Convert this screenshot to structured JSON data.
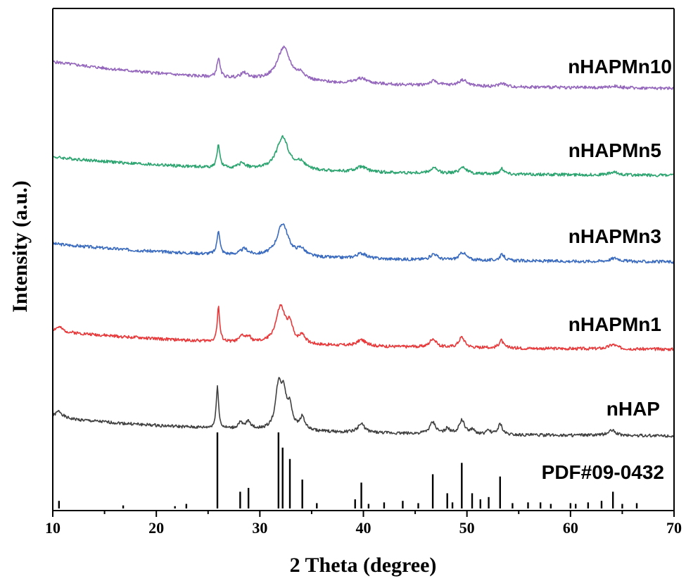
{
  "chart_data": {
    "type": "line",
    "title": "",
    "xlabel": "2 Theta (degree)",
    "ylabel": "Intensity (a.u.)",
    "xlim": [
      10,
      70
    ],
    "x_ticks": [
      "10",
      "20",
      "30",
      "40",
      "50",
      "60",
      "70"
    ],
    "y_ticks_shown": false,
    "grid": false,
    "legend": "none; series names printed at right end of each trace",
    "y_scale": "arbitrary units, traces vertically offset",
    "peaks": [
      {
        "x": 10.6,
        "h": 0.1,
        "w": 0.45
      },
      {
        "x": 16.8,
        "h": 0.04,
        "w": 0.4
      },
      {
        "x": 21.8,
        "h": 0.03,
        "w": 0.35
      },
      {
        "x": 22.9,
        "h": 0.06,
        "w": 0.3
      },
      {
        "x": 25.9,
        "h": 1.0,
        "w": 0.13
      },
      {
        "x": 28.1,
        "h": 0.22,
        "w": 0.2
      },
      {
        "x": 28.9,
        "h": 0.27,
        "w": 0.22
      },
      {
        "x": 31.8,
        "h": 1.0,
        "w": 0.22
      },
      {
        "x": 32.2,
        "h": 0.8,
        "w": 0.22
      },
      {
        "x": 32.9,
        "h": 0.65,
        "w": 0.25
      },
      {
        "x": 34.1,
        "h": 0.38,
        "w": 0.22
      },
      {
        "x": 35.5,
        "h": 0.07,
        "w": 0.25
      },
      {
        "x": 39.2,
        "h": 0.12,
        "w": 0.3
      },
      {
        "x": 39.8,
        "h": 0.34,
        "w": 0.3
      },
      {
        "x": 40.5,
        "h": 0.06,
        "w": 0.25
      },
      {
        "x": 42.0,
        "h": 0.08,
        "w": 0.25
      },
      {
        "x": 43.8,
        "h": 0.1,
        "w": 0.25
      },
      {
        "x": 45.3,
        "h": 0.07,
        "w": 0.25
      },
      {
        "x": 46.7,
        "h": 0.45,
        "w": 0.3
      },
      {
        "x": 48.1,
        "h": 0.2,
        "w": 0.25
      },
      {
        "x": 48.6,
        "h": 0.08,
        "w": 0.25
      },
      {
        "x": 49.5,
        "h": 0.6,
        "w": 0.28
      },
      {
        "x": 50.5,
        "h": 0.2,
        "w": 0.25
      },
      {
        "x": 51.3,
        "h": 0.12,
        "w": 0.25
      },
      {
        "x": 52.1,
        "h": 0.15,
        "w": 0.25
      },
      {
        "x": 53.2,
        "h": 0.42,
        "w": 0.22
      },
      {
        "x": 54.4,
        "h": 0.07,
        "w": 0.25
      },
      {
        "x": 55.9,
        "h": 0.08,
        "w": 0.25
      },
      {
        "x": 57.1,
        "h": 0.08,
        "w": 0.25
      },
      {
        "x": 58.1,
        "h": 0.06,
        "w": 0.25
      },
      {
        "x": 60.0,
        "h": 0.07,
        "w": 0.25
      },
      {
        "x": 60.5,
        "h": 0.06,
        "w": 0.25
      },
      {
        "x": 61.7,
        "h": 0.08,
        "w": 0.25
      },
      {
        "x": 63.0,
        "h": 0.1,
        "w": 0.3
      },
      {
        "x": 64.1,
        "h": 0.22,
        "w": 0.35
      },
      {
        "x": 65.0,
        "h": 0.06,
        "w": 0.25
      },
      {
        "x": 66.4,
        "h": 0.07,
        "w": 0.25
      }
    ],
    "series": [
      {
        "name": "nHAPMn10",
        "color": "#9467bd",
        "offset": 4.0,
        "noise_seed": 5,
        "peaks": [
          {
            "x": 26.0,
            "h": 0.22,
            "w": 0.18
          },
          {
            "x": 28.5,
            "h": 0.06,
            "w": 0.45
          },
          {
            "x": 32.3,
            "h": 0.38,
            "w": 0.75
          },
          {
            "x": 34.0,
            "h": 0.07,
            "w": 0.5
          },
          {
            "x": 39.8,
            "h": 0.06,
            "w": 0.7
          },
          {
            "x": 46.8,
            "h": 0.05,
            "w": 0.5
          },
          {
            "x": 49.6,
            "h": 0.07,
            "w": 0.5
          },
          {
            "x": 53.4,
            "h": 0.04,
            "w": 0.35
          },
          {
            "x": 64.3,
            "h": 0.02,
            "w": 0.6
          }
        ],
        "baseline": {
          "start": 0.32,
          "end": 0.0
        }
      },
      {
        "name": "nHAPMn5",
        "color": "#2ca470",
        "offset": 3.0,
        "noise_seed": 4,
        "peaks": [
          {
            "x": 26.0,
            "h": 0.27,
            "w": 0.16
          },
          {
            "x": 28.3,
            "h": 0.06,
            "w": 0.4
          },
          {
            "x": 32.2,
            "h": 0.38,
            "w": 0.7
          },
          {
            "x": 34.0,
            "h": 0.08,
            "w": 0.45
          },
          {
            "x": 39.8,
            "h": 0.06,
            "w": 0.6
          },
          {
            "x": 46.8,
            "h": 0.06,
            "w": 0.4
          },
          {
            "x": 49.6,
            "h": 0.08,
            "w": 0.4
          },
          {
            "x": 53.4,
            "h": 0.06,
            "w": 0.3
          },
          {
            "x": 64.2,
            "h": 0.03,
            "w": 0.6
          }
        ],
        "baseline": {
          "start": 0.22,
          "end": 0.0
        }
      },
      {
        "name": "nHAPMn3",
        "color": "#3a6bbf",
        "offset": 2.0,
        "noise_seed": 3,
        "peaks": [
          {
            "x": 26.0,
            "h": 0.28,
            "w": 0.16
          },
          {
            "x": 28.5,
            "h": 0.07,
            "w": 0.45
          },
          {
            "x": 32.2,
            "h": 0.38,
            "w": 0.65
          },
          {
            "x": 34.0,
            "h": 0.08,
            "w": 0.45
          },
          {
            "x": 39.8,
            "h": 0.06,
            "w": 0.6
          },
          {
            "x": 46.8,
            "h": 0.07,
            "w": 0.4
          },
          {
            "x": 49.6,
            "h": 0.09,
            "w": 0.4
          },
          {
            "x": 53.4,
            "h": 0.07,
            "w": 0.3
          },
          {
            "x": 64.3,
            "h": 0.04,
            "w": 0.6
          }
        ],
        "baseline": {
          "start": 0.22,
          "end": 0.0
        }
      },
      {
        "name": "nHAPMn1",
        "color": "#e8383a",
        "offset": 1.0,
        "noise_seed": 2,
        "peaks": [
          {
            "x": 10.6,
            "h": 0.05,
            "w": 0.4
          },
          {
            "x": 26.0,
            "h": 0.4,
            "w": 0.14
          },
          {
            "x": 28.3,
            "h": 0.07,
            "w": 0.3
          },
          {
            "x": 28.9,
            "h": 0.06,
            "w": 0.3
          },
          {
            "x": 32.0,
            "h": 0.42,
            "w": 0.55
          },
          {
            "x": 32.9,
            "h": 0.18,
            "w": 0.35
          },
          {
            "x": 34.1,
            "h": 0.1,
            "w": 0.3
          },
          {
            "x": 39.8,
            "h": 0.07,
            "w": 0.5
          },
          {
            "x": 46.7,
            "h": 0.1,
            "w": 0.35
          },
          {
            "x": 49.5,
            "h": 0.12,
            "w": 0.35
          },
          {
            "x": 53.3,
            "h": 0.09,
            "w": 0.25
          },
          {
            "x": 64.1,
            "h": 0.05,
            "w": 0.5
          }
        ],
        "baseline": {
          "start": 0.22,
          "end": 0.0
        }
      },
      {
        "name": "nHAP",
        "color": "#404040",
        "offset": 0.0,
        "noise_seed": 1,
        "peaks": [
          {
            "x": 10.6,
            "h": 0.08,
            "w": 0.4
          },
          {
            "x": 25.9,
            "h": 0.5,
            "w": 0.13
          },
          {
            "x": 28.1,
            "h": 0.07,
            "w": 0.25
          },
          {
            "x": 28.9,
            "h": 0.09,
            "w": 0.28
          },
          {
            "x": 31.8,
            "h": 0.48,
            "w": 0.35
          },
          {
            "x": 32.3,
            "h": 0.36,
            "w": 0.3
          },
          {
            "x": 32.9,
            "h": 0.25,
            "w": 0.3
          },
          {
            "x": 34.1,
            "h": 0.15,
            "w": 0.3
          },
          {
            "x": 39.8,
            "h": 0.1,
            "w": 0.4
          },
          {
            "x": 46.7,
            "h": 0.13,
            "w": 0.35
          },
          {
            "x": 48.1,
            "h": 0.06,
            "w": 0.25
          },
          {
            "x": 49.5,
            "h": 0.16,
            "w": 0.32
          },
          {
            "x": 50.5,
            "h": 0.05,
            "w": 0.25
          },
          {
            "x": 52.1,
            "h": 0.04,
            "w": 0.25
          },
          {
            "x": 53.2,
            "h": 0.12,
            "w": 0.25
          },
          {
            "x": 64.0,
            "h": 0.06,
            "w": 0.45
          }
        ],
        "baseline": {
          "start": 0.22,
          "end": 0.0
        }
      }
    ],
    "reference": {
      "name": "PDF#09-0432"
    }
  }
}
